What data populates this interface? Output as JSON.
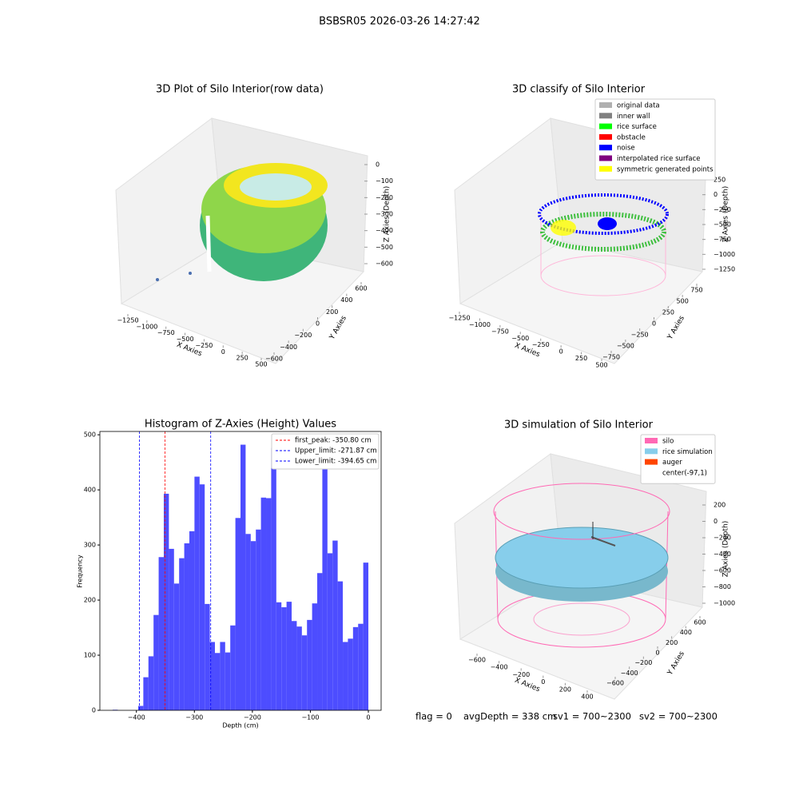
{
  "title": "BSBSR05 2026-03-26 14:27:42",
  "footer": [
    "flag = 0",
    "avgDepth = 338 cm",
    "sv1 = 700~2300",
    "sv2 = 700~2300"
  ],
  "chart_data": [
    {
      "type": "scatter3d",
      "title": "3D Plot of Silo Interior(row data)",
      "xlabel": "X Axies",
      "ylabel": "Y Axies",
      "zlabel": "Z Axies (Depth)",
      "xticks": [
        {
          "value": -1250,
          "label": "−1250"
        },
        {
          "value": -1000,
          "label": "−1000"
        },
        {
          "value": -750,
          "label": "−750"
        },
        {
          "value": -500,
          "label": "−500"
        },
        {
          "value": -250,
          "label": "−250"
        },
        0,
        250,
        500
      ],
      "yticks": [
        {
          "value": -600,
          "label": "−600"
        },
        {
          "value": -400,
          "label": "−400"
        },
        {
          "value": -200,
          "label": "−200"
        },
        0,
        200,
        400,
        600
      ],
      "zticks": [
        0,
        {
          "value": -100,
          "label": "−100"
        },
        {
          "value": -200,
          "label": "−200"
        },
        {
          "value": -300,
          "label": "−300"
        },
        {
          "value": -400,
          "label": "−400"
        },
        {
          "value": -500,
          "label": "−500"
        },
        {
          "value": -600,
          "label": "−600"
        }
      ]
    },
    {
      "type": "scatter3d",
      "title": "3D classify of Silo Interior",
      "xlabel": "X Axies",
      "ylabel": "Y Axies",
      "zlabel": "Z Axies (Depth)",
      "xticks": [
        {
          "value": -1250,
          "label": "−1250"
        },
        {
          "value": -1000,
          "label": "−1000"
        },
        {
          "value": -750,
          "label": "−750"
        },
        {
          "value": -500,
          "label": "−500"
        },
        {
          "value": -250,
          "label": "−250"
        },
        0,
        250,
        500
      ],
      "yticks": [
        {
          "value": -750,
          "label": "−750"
        },
        {
          "value": -500,
          "label": "−500"
        },
        {
          "value": -250,
          "label": "−250"
        },
        0,
        250,
        500,
        750
      ],
      "zticks": [
        250,
        0,
        {
          "value": -250,
          "label": "−250"
        },
        {
          "value": -500,
          "label": "−500"
        },
        {
          "value": -750,
          "label": "−750"
        },
        {
          "value": -1000,
          "label": "−1000"
        },
        {
          "value": -1250,
          "label": "−1250"
        }
      ],
      "series": [
        {
          "name": "original data",
          "color": "#b0b0b0"
        },
        {
          "name": "inner wall",
          "color": "#808080"
        },
        {
          "name": "rice surface",
          "color": "#00ff00"
        },
        {
          "name": "obstacle",
          "color": "#ff0000"
        },
        {
          "name": "noise",
          "color": "#0000ff"
        },
        {
          "name": "interpolated rice surface",
          "color": "#800080"
        },
        {
          "name": "symmetric generated points",
          "color": "#ffff00"
        }
      ]
    },
    {
      "type": "scatter3d",
      "title": "3D simulation of Silo Interior",
      "xlabel": "X Axies",
      "ylabel": "Y Axies",
      "zlabel": "Z Axies (Depth)",
      "xticks": [
        {
          "value": -600,
          "label": "−600"
        },
        {
          "value": -400,
          "label": "−400"
        },
        {
          "value": -200,
          "label": "−200"
        },
        0,
        200,
        400
      ],
      "yticks": [
        {
          "value": -600,
          "label": "−600"
        },
        {
          "value": -400,
          "label": "−400"
        },
        {
          "value": -200,
          "label": "−200"
        },
        0,
        200,
        400,
        600
      ],
      "zticks": [
        200,
        0,
        {
          "value": -200,
          "label": "−200"
        },
        {
          "value": -400,
          "label": "−400"
        },
        {
          "value": -600,
          "label": "−600"
        },
        {
          "value": -800,
          "label": "−800"
        },
        {
          "value": -1000,
          "label": "−1000"
        }
      ],
      "series": [
        {
          "name": "silo",
          "color": "#ff69b4"
        },
        {
          "name": "rice simulation",
          "color": "#87ceeb"
        },
        {
          "name": "auger",
          "color": "#ff4500"
        },
        {
          "name": "center(-97,1)",
          "color": "#ffffff"
        }
      ]
    },
    {
      "type": "histogram",
      "title": "Histogram of Z-Axies (Height) Values",
      "xlabel": "Depth (cm)",
      "ylabel": "Frequency",
      "color": "#4d4dff",
      "bins": [
        -441,
        -432.18,
        -423.36,
        -414.54,
        -405.72,
        -396.9,
        -388.08,
        -379.26,
        -370.44,
        -361.62,
        -352.8,
        -343.98,
        -335.16,
        -326.34,
        -317.52,
        -308.7,
        -299.88,
        -291.06,
        -282.24,
        -273.42,
        -264.6,
        -255.78,
        -246.96,
        -238.14,
        -229.32,
        -220.5,
        -211.68,
        -202.86,
        -194.04,
        -185.22,
        -176.4,
        -167.58,
        -158.76,
        -149.94,
        -141.12,
        -132.3,
        -123.48,
        -114.66,
        -105.84,
        -97.02,
        -88.2,
        -79.38,
        -70.56,
        -61.74,
        -52.92,
        -44.1,
        -35.28,
        -26.46,
        -17.64,
        -8.82,
        0
      ],
      "counts": [
        1,
        0,
        0,
        0,
        0,
        8,
        60,
        98,
        173,
        278,
        393,
        293,
        230,
        276,
        303,
        325,
        424,
        410,
        193,
        124,
        104,
        124,
        105,
        154,
        349,
        482,
        320,
        307,
        328,
        386,
        385,
        476,
        196,
        187,
        197,
        162,
        152,
        136,
        164,
        194,
        249,
        440,
        285,
        308,
        234,
        124,
        130,
        151,
        157,
        268
      ],
      "lines": [
        {
          "name": "first_peak: -350.80 cm",
          "value": -350.8,
          "color": "#ff0000"
        },
        {
          "name": "Upper_limit: -271.87 cm",
          "value": -271.87,
          "color": "#0000ff"
        },
        {
          "name": "Lower_limit: -394.65 cm",
          "value": -394.65,
          "color": "#0000ff"
        }
      ],
      "xlim": [
        -463,
        22
      ],
      "ylim": [
        0,
        506
      ],
      "xticks": [
        {
          "value": -400,
          "label": "−400"
        },
        {
          "value": -300,
          "label": "−300"
        },
        {
          "value": -200,
          "label": "−200"
        },
        {
          "value": -100,
          "label": "−100"
        },
        0
      ],
      "yticks": [
        0,
        100,
        200,
        300,
        400,
        500
      ]
    }
  ]
}
